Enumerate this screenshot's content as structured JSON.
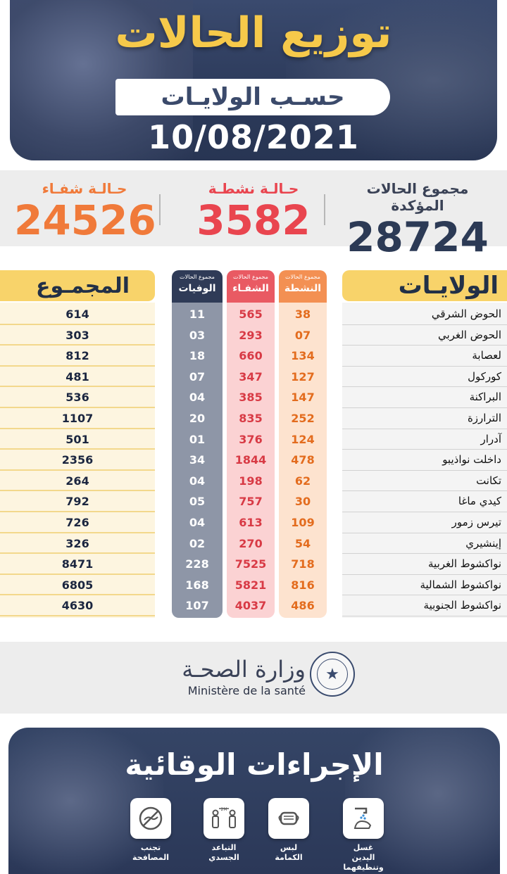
{
  "header": {
    "title": "توزيع الحالات",
    "subtitle": "حسـب الولايـات",
    "date": "10/08/2021"
  },
  "summary": {
    "total": {
      "label": "مجموع الحالات المؤكدة",
      "value": "28724",
      "color": "#2c3a55"
    },
    "active": {
      "label": "حـالـة نشطـة",
      "value": "3582",
      "color": "#e9454f"
    },
    "recovered": {
      "label": "حـالـة شفـاء",
      "value": "24526",
      "color": "#f07a3a"
    }
  },
  "table": {
    "headers": {
      "wilaya": "الولايـات",
      "active_small": "مجموع الحالات",
      "active": "النشطة",
      "recovered_small": "مجموع الحالات",
      "recovered": "الشفـاء",
      "deaths_small": "مجموع الحالات",
      "deaths": "الوفيات",
      "total": "المجمـوع"
    },
    "rows": [
      {
        "name": "الحوض الشرقي",
        "active": "38",
        "recovered": "565",
        "deaths": "11",
        "total": "614"
      },
      {
        "name": "الحوض الغربي",
        "active": "07",
        "recovered": "293",
        "deaths": "03",
        "total": "303"
      },
      {
        "name": "لعصابة",
        "active": "134",
        "recovered": "660",
        "deaths": "18",
        "total": "812"
      },
      {
        "name": "كوركول",
        "active": "127",
        "recovered": "347",
        "deaths": "07",
        "total": "481"
      },
      {
        "name": "البراكنة",
        "active": "147",
        "recovered": "385",
        "deaths": "04",
        "total": "536"
      },
      {
        "name": "الترارزة",
        "active": "252",
        "recovered": "835",
        "deaths": "20",
        "total": "1107"
      },
      {
        "name": "آدرار",
        "active": "124",
        "recovered": "376",
        "deaths": "01",
        "total": "501"
      },
      {
        "name": "داخلت نواذيبو",
        "active": "478",
        "recovered": "1844",
        "deaths": "34",
        "total": "2356"
      },
      {
        "name": "تكانت",
        "active": "62",
        "recovered": "198",
        "deaths": "04",
        "total": "264"
      },
      {
        "name": "كيدي ماغا",
        "active": "30",
        "recovered": "757",
        "deaths": "05",
        "total": "792"
      },
      {
        "name": "تيرس زمور",
        "active": "109",
        "recovered": "613",
        "deaths": "04",
        "total": "726"
      },
      {
        "name": "إينشيري",
        "active": "54",
        "recovered": "270",
        "deaths": "02",
        "total": "326"
      },
      {
        "name": "نواكشوط الغربية",
        "active": "718",
        "recovered": "7525",
        "deaths": "228",
        "total": "8471"
      },
      {
        "name": "نواكشوط الشمالية",
        "active": "816",
        "recovered": "5821",
        "deaths": "168",
        "total": "6805"
      },
      {
        "name": "نواكشوط الجنوبية",
        "active": "486",
        "recovered": "4037",
        "deaths": "107",
        "total": "4630"
      }
    ]
  },
  "ministry": {
    "name_ar": "وزارة الصحـة",
    "name_fr": "Ministère de la santé"
  },
  "prevention": {
    "title": "الإجراءات الوقائية",
    "tips": [
      {
        "label": "غسل اليدين وتنظيفهما",
        "icon": "hand-wash-icon"
      },
      {
        "label": "لبس الكمامة",
        "icon": "face-mask-icon"
      },
      {
        "label": "التباعد الجسدي",
        "icon": "social-distance-icon",
        "badge": "2M"
      },
      {
        "label": "تجنب المصافحة",
        "icon": "no-handshake-icon"
      }
    ]
  },
  "colors": {
    "yellow": "#f6c94a",
    "navy": "#2c3a5a",
    "orange": "#f39053",
    "red": "#e95a63"
  }
}
